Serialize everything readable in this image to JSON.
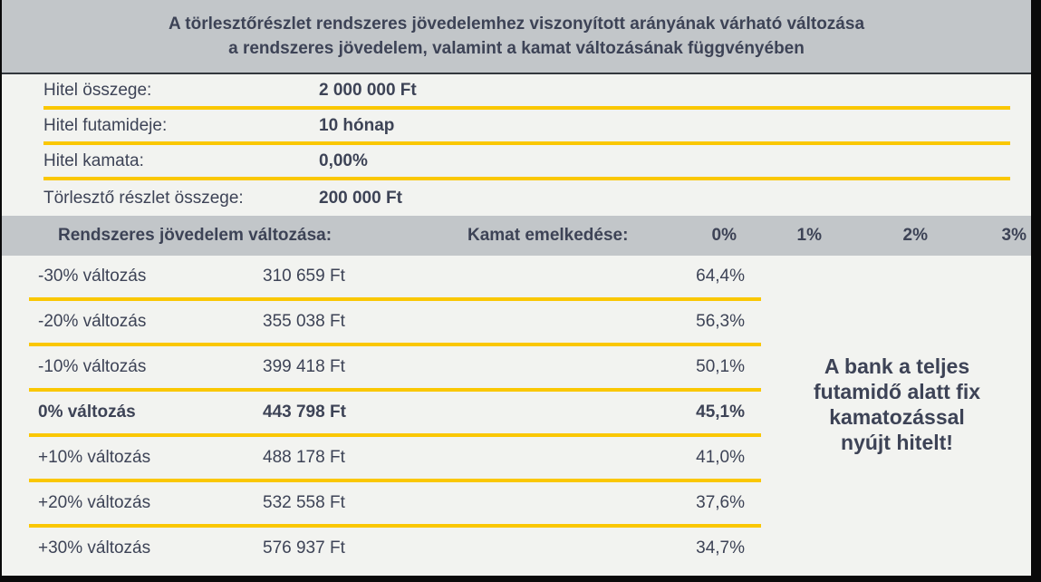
{
  "title": {
    "line1": "A törlesztőrészlet rendszeres jövedelemhez viszonyított arányának várható változása",
    "line2": "a rendszeres jövedelem, valamint a kamat változásának függvényében"
  },
  "loan_info": {
    "rows": [
      {
        "label": "Hitel összege:",
        "value": "2 000 000 Ft"
      },
      {
        "label": "Hitel futamideje:",
        "value": "10 hónap"
      },
      {
        "label": "Hitel kamata:",
        "value": "0,00%"
      },
      {
        "label": "Törlesztő részlet összege:",
        "value": "200 000 Ft"
      }
    ]
  },
  "table": {
    "income_change_header": "Rendszeres jövedelem változása:",
    "rate_increase_header": "Kamat emelkedése:",
    "rate_columns": [
      "0%",
      "1%",
      "2%",
      "3%"
    ],
    "rows": [
      {
        "change": "-30% változás",
        "payment": "310 659 Ft",
        "ratio": "64,4%"
      },
      {
        "change": "-20% változás",
        "payment": "355 038 Ft",
        "ratio": "56,3%"
      },
      {
        "change": "-10% változás",
        "payment": "399 418 Ft",
        "ratio": "50,1%"
      },
      {
        "change": "0% változás",
        "payment": "443 798 Ft",
        "ratio": "45,1%"
      },
      {
        "change": "+10% változás",
        "payment": "488 178 Ft",
        "ratio": "41,0%"
      },
      {
        "change": "+20% változás",
        "payment": "532 558 Ft",
        "ratio": "37,6%"
      },
      {
        "change": "+30% változás",
        "payment": "576 937 Ft",
        "ratio": "34,7%"
      }
    ]
  },
  "note": {
    "lines": [
      "A bank a teljes",
      "futamidő alatt fix",
      "kamatozással",
      "nyújt hitelt!"
    ]
  },
  "colors": {
    "header_gray": "#c2c6c9",
    "text_navy": "#3d4356",
    "accent_yellow": "#fac702",
    "background_light": "#f2f3f0",
    "frame_black": "#0a0a0a"
  }
}
